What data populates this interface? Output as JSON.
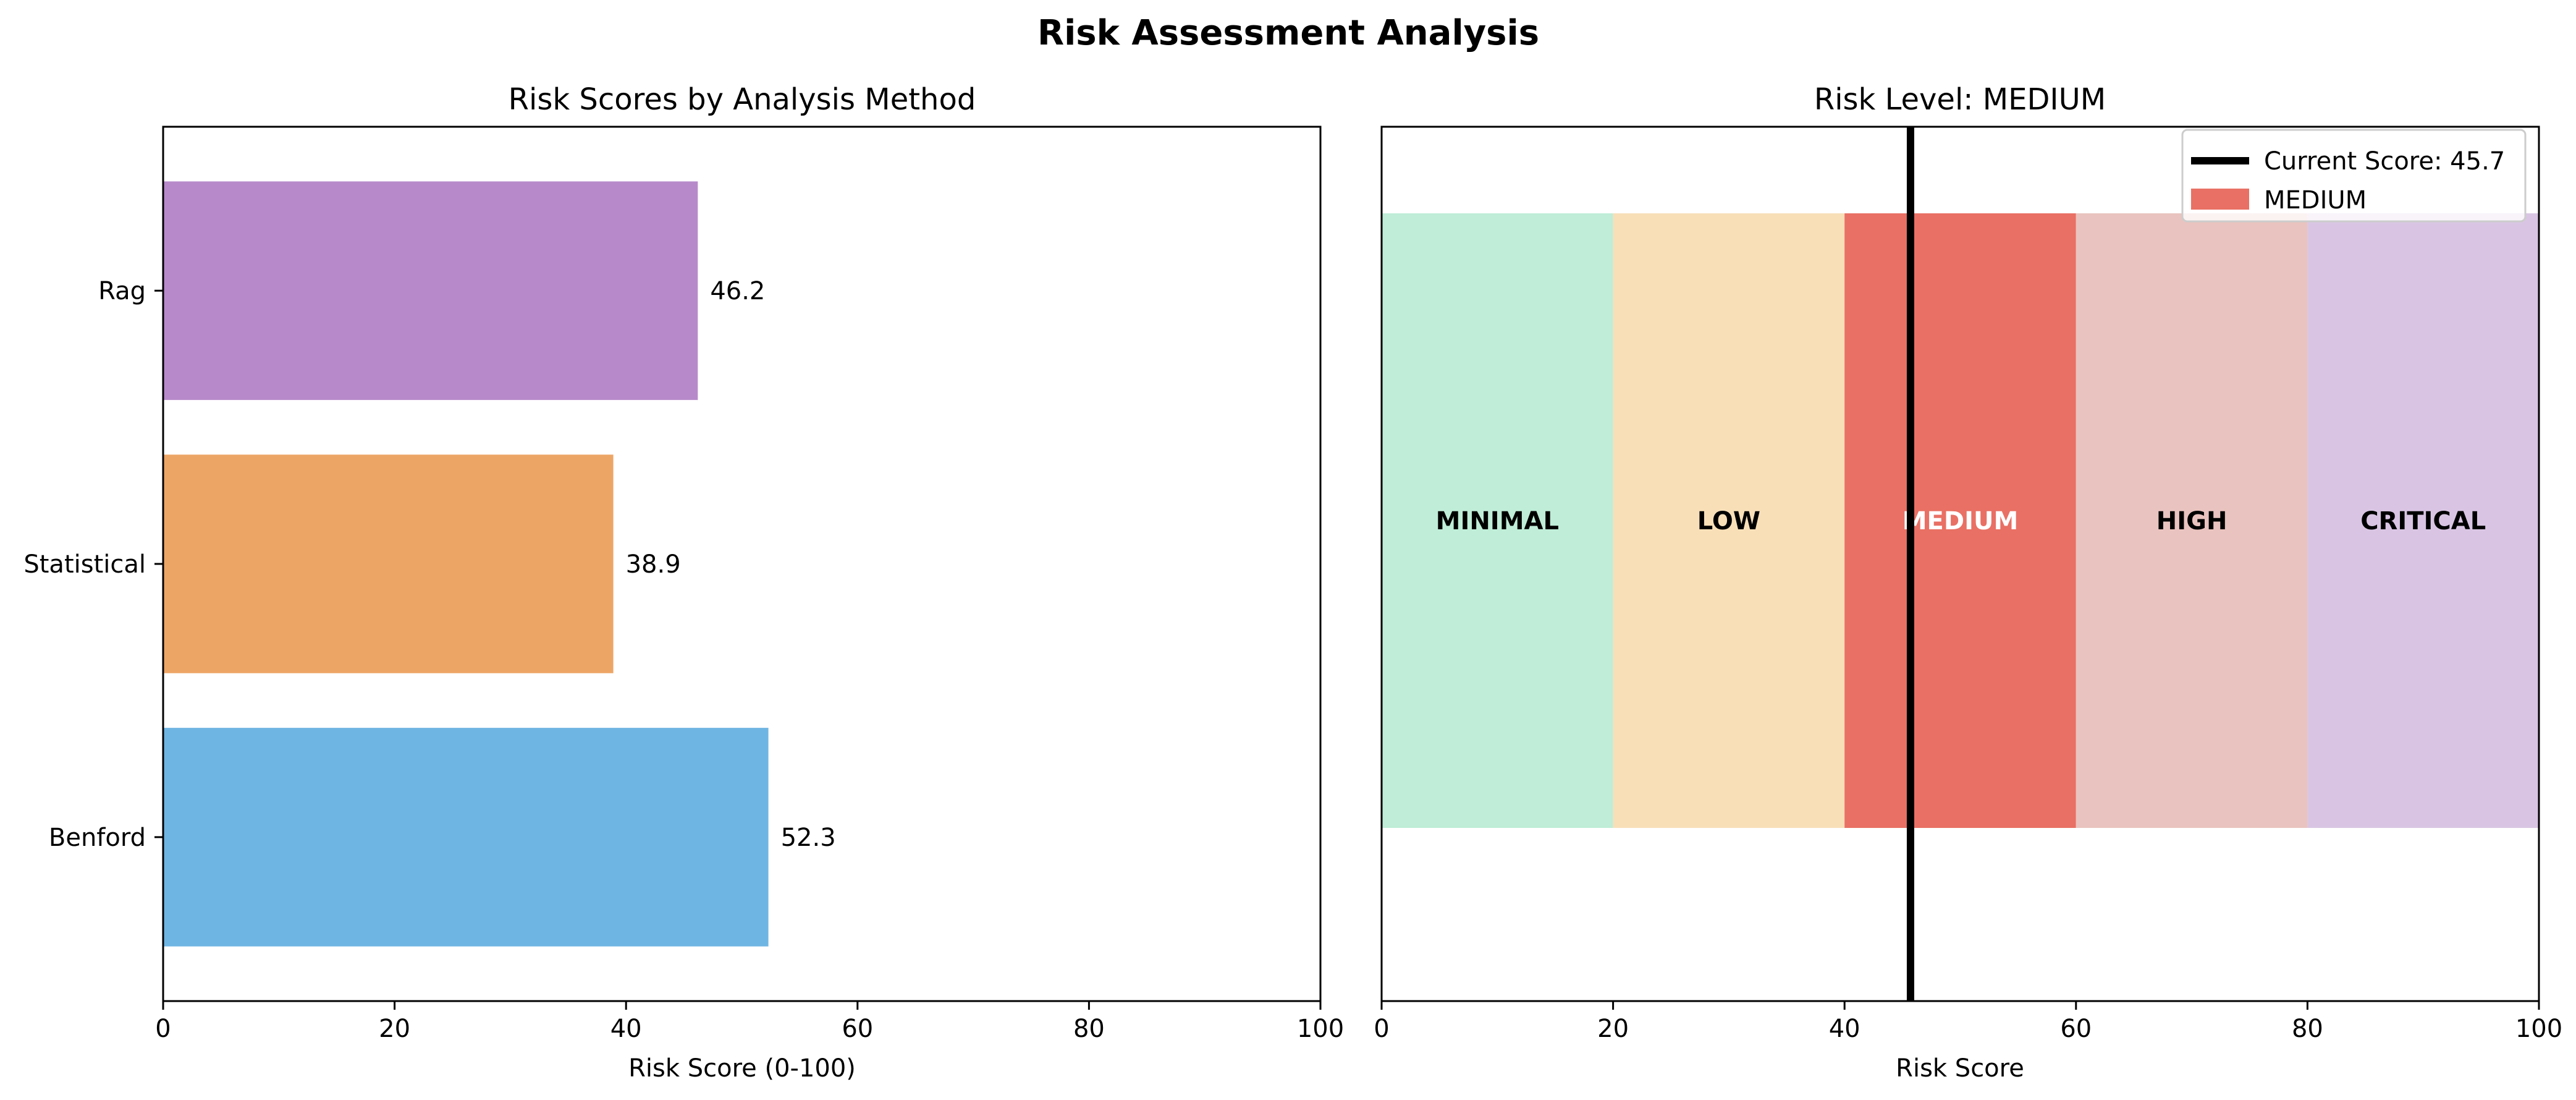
{
  "suptitle": "Risk Assessment Analysis",
  "chart_data": [
    {
      "type": "bar",
      "orientation": "horizontal",
      "title": "Risk Scores by Analysis Method",
      "xlabel": "Risk Score (0-100)",
      "ylabel": "",
      "xlim": [
        0,
        100
      ],
      "xticks": [
        0,
        20,
        40,
        60,
        80,
        100
      ],
      "categories": [
        "Benford",
        "Statistical",
        "Rag"
      ],
      "values": [
        52.3,
        38.9,
        46.2
      ],
      "value_labels": [
        "52.3",
        "38.9",
        "46.2"
      ],
      "colors": [
        "#6fb5e3",
        "#eda566",
        "#b789ca"
      ],
      "grid": false
    },
    {
      "type": "gauge",
      "title": "Risk Level: MEDIUM",
      "xlabel": "Risk Score",
      "xlim": [
        0,
        100
      ],
      "xticks": [
        0,
        20,
        40,
        60,
        80,
        100
      ],
      "bands": [
        {
          "label": "MINIMAL",
          "from": 0,
          "to": 20,
          "color": "#bfedd7",
          "text_color": "#000000"
        },
        {
          "label": "LOW",
          "from": 20,
          "to": 40,
          "color": "#f8dfb8",
          "text_color": "#000000"
        },
        {
          "label": "MEDIUM",
          "from": 40,
          "to": 60,
          "color": "#e97064",
          "text_color": "#ffffff"
        },
        {
          "label": "HIGH",
          "from": 60,
          "to": 80,
          "color": "#e9c3bf",
          "text_color": "#000000"
        },
        {
          "label": "CRITICAL",
          "from": 80,
          "to": 100,
          "color": "#d9c5e3",
          "text_color": "#000000"
        }
      ],
      "current_score": 45.7,
      "legend": {
        "location": "top-right",
        "entries": [
          {
            "label": "Current Score: 45.7",
            "kind": "line",
            "color": "#000000"
          },
          {
            "label": "MEDIUM",
            "kind": "patch",
            "color": "#e97064"
          }
        ]
      },
      "grid": false
    }
  ]
}
